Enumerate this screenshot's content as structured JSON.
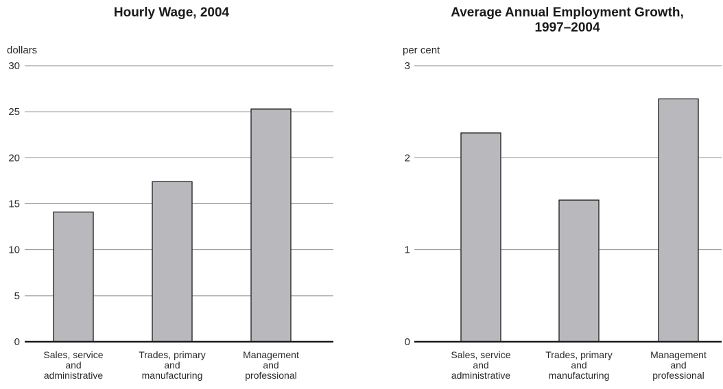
{
  "chart_data": [
    {
      "type": "bar",
      "title": [
        "Hourly Wage, 2004"
      ],
      "ylabel": "dollars",
      "ylim": [
        0,
        30
      ],
      "yticks": [
        0,
        5,
        10,
        15,
        20,
        25,
        30
      ],
      "categories": [
        [
          "Sales, service",
          "and",
          "administrative"
        ],
        [
          "Trades, primary",
          "and",
          "manufacturing"
        ],
        [
          "Management",
          "and",
          "professional"
        ]
      ],
      "values": [
        14.1,
        17.4,
        25.3
      ],
      "grid": true,
      "bar_color": "#b9b9bd"
    },
    {
      "type": "bar",
      "title": [
        "Average Annual Employment Growth,",
        "1997–2004"
      ],
      "ylabel": "per cent",
      "ylim": [
        0,
        3
      ],
      "yticks": [
        0,
        1,
        2,
        3
      ],
      "categories": [
        [
          "Sales, service",
          "and",
          "administrative"
        ],
        [
          "Trades, primary",
          "and",
          "manufacturing"
        ],
        [
          "Management",
          "and",
          "professional"
        ]
      ],
      "values": [
        2.27,
        1.54,
        2.64
      ],
      "grid": true,
      "bar_color": "#b9b9bd"
    }
  ]
}
